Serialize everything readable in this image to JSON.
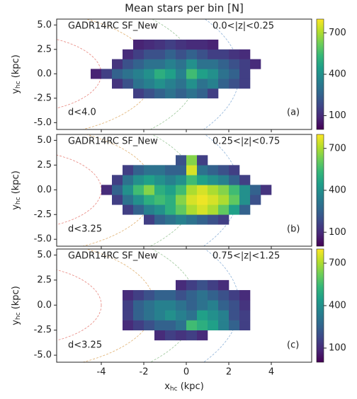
{
  "chart_data": [
    {
      "type": "heatmap",
      "title": "Mean stars per bin [N]",
      "ylabel": [
        "y",
        "hc",
        " (kpc)"
      ],
      "annotations": [
        "GADR14RC SF_New",
        "0.0<|z|<0.25",
        "d<4.0",
        "(a)"
      ],
      "cmap": "viridis",
      "xlim": [
        -6.1,
        5.9
      ],
      "ylim": [
        -5.7,
        5.6
      ],
      "xticks": [
        -4,
        -2,
        0,
        2,
        4
      ],
      "yticks": [
        {
          "value": 5,
          "label": "5.0"
        },
        2.5,
        {
          "value": 0,
          "label": "0.0"
        },
        -2.5,
        {
          "value": -5,
          "label": "-5.0"
        }
      ],
      "clim": [
        0,
        800
      ],
      "cticks": [
        100,
        400,
        700
      ],
      "xbins": [
        -4.5,
        -4,
        -3.5,
        -3,
        -2.5,
        -2,
        -1.5,
        -1,
        -0.5,
        0,
        0.5,
        1,
        1.5,
        2,
        2.5,
        3,
        3.5,
        4
      ],
      "ybins": [
        -3.5,
        -2.5,
        -1.5,
        -0.5,
        0.5,
        1.5,
        2.5,
        3.5
      ],
      "values": [
        [
          null,
          null,
          null,
          null,
          null,
          null,
          null,
          null,
          null,
          null,
          null,
          null,
          null,
          null,
          null,
          null,
          null
        ],
        [
          null,
          null,
          null,
          null,
          150,
          200,
          250,
          300,
          250,
          300,
          250,
          150,
          null,
          null,
          null,
          null,
          null
        ],
        [
          null,
          null,
          120,
          200,
          300,
          350,
          400,
          350,
          300,
          400,
          300,
          350,
          250,
          200,
          150,
          null,
          null
        ],
        [
          80,
          150,
          250,
          300,
          350,
          400,
          500,
          450,
          350,
          550,
          450,
          400,
          300,
          250,
          150,
          null,
          null
        ],
        [
          null,
          null,
          120,
          200,
          250,
          300,
          300,
          350,
          300,
          400,
          300,
          300,
          250,
          200,
          150,
          100,
          null
        ],
        [
          null,
          null,
          null,
          100,
          150,
          200,
          200,
          250,
          200,
          250,
          200,
          150,
          150,
          120,
          100,
          null,
          null
        ],
        [
          null,
          null,
          null,
          null,
          80,
          100,
          120,
          150,
          120,
          100,
          100,
          80,
          null,
          null,
          null,
          null,
          null
        ]
      ]
    },
    {
      "type": "heatmap",
      "ylabel": [
        "y",
        "hc",
        " (kpc)"
      ],
      "annotations": [
        "GADR14RC SF_New",
        "0.25<|z|<0.75",
        "d<3.25",
        "(b)"
      ],
      "cmap": "viridis",
      "xlim": [
        -6.1,
        5.9
      ],
      "ylim": [
        -5.7,
        5.6
      ],
      "xticks": [
        -4,
        -2,
        0,
        2,
        4
      ],
      "yticks": [
        {
          "value": 5,
          "label": "5.0"
        },
        2.5,
        {
          "value": 0,
          "label": "0.0"
        },
        -2.5,
        {
          "value": -5,
          "label": "-5.0"
        }
      ],
      "clim": [
        0,
        800
      ],
      "cticks": [
        100,
        400,
        700
      ],
      "xbins": [
        -4.5,
        -4,
        -3.5,
        -3,
        -2.5,
        -2,
        -1.5,
        -1,
        -0.5,
        0,
        0.5,
        1,
        1.5,
        2,
        2.5,
        3,
        3.5,
        4
      ],
      "ybins": [
        -3.5,
        -2.5,
        -1.5,
        -0.5,
        0.5,
        1.5,
        2.5,
        3.5
      ],
      "values": [
        [
          null,
          null,
          null,
          null,
          null,
          150,
          250,
          300,
          350,
          300,
          250,
          200,
          150,
          null,
          null,
          null,
          null
        ],
        [
          null,
          null,
          null,
          150,
          250,
          350,
          400,
          500,
          600,
          700,
          750,
          700,
          600,
          450,
          250,
          null,
          null
        ],
        [
          null,
          null,
          150,
          300,
          400,
          500,
          550,
          500,
          650,
          750,
          780,
          750,
          700,
          600,
          400,
          200,
          null
        ],
        [
          null,
          100,
          250,
          400,
          550,
          650,
          500,
          450,
          550,
          700,
          750,
          700,
          650,
          550,
          400,
          250,
          120
        ],
        [
          null,
          null,
          150,
          300,
          400,
          450,
          400,
          350,
          400,
          550,
          450,
          400,
          350,
          250,
          150,
          null,
          null
        ],
        [
          null,
          null,
          null,
          150,
          250,
          300,
          300,
          250,
          250,
          750,
          300,
          250,
          200,
          150,
          null,
          null,
          null
        ],
        [
          null,
          null,
          null,
          null,
          null,
          null,
          null,
          null,
          200,
          650,
          150,
          null,
          null,
          null,
          null,
          null,
          null
        ]
      ]
    },
    {
      "type": "heatmap",
      "ylabel": [
        "y",
        "hc",
        " (kpc)"
      ],
      "xlabel": [
        "x",
        "hc",
        " (kpc)"
      ],
      "annotations": [
        "GADR14RC SF_New",
        "0.75<|z|<1.25",
        "d<3.25",
        "(c)"
      ],
      "cmap": "viridis",
      "xlim": [
        -6.1,
        5.9
      ],
      "ylim": [
        -5.7,
        5.6
      ],
      "xticks": [
        -4,
        -2,
        0,
        2,
        4
      ],
      "yticks": [
        {
          "value": 5,
          "label": "5.0"
        },
        2.5,
        {
          "value": 0,
          "label": "0.0"
        },
        -2.5,
        {
          "value": -5,
          "label": "-5.0"
        }
      ],
      "clim": [
        0,
        800
      ],
      "cticks": [
        100,
        400,
        700
      ],
      "xbins": [
        -4.5,
        -4,
        -3.5,
        -3,
        -2.5,
        -2,
        -1.5,
        -1,
        -0.5,
        0,
        0.5,
        1,
        1.5,
        2,
        2.5,
        3,
        3.5,
        4
      ],
      "ybins": [
        -3.5,
        -2.5,
        -1.5,
        -0.5,
        0.5,
        1.5,
        2.5,
        3.5
      ],
      "values": [
        [
          null,
          null,
          null,
          null,
          null,
          null,
          100,
          150,
          120,
          150,
          100,
          null,
          null,
          null,
          null,
          null,
          null
        ],
        [
          null,
          null,
          null,
          100,
          150,
          200,
          250,
          250,
          300,
          550,
          500,
          450,
          350,
          250,
          150,
          null,
          null
        ],
        [
          null,
          null,
          null,
          150,
          250,
          300,
          350,
          400,
          350,
          300,
          450,
          400,
          350,
          200,
          150,
          null,
          null
        ],
        [
          null,
          null,
          null,
          150,
          250,
          300,
          350,
          350,
          300,
          250,
          300,
          350,
          250,
          200,
          120,
          null,
          null
        ],
        [
          null,
          null,
          null,
          100,
          150,
          200,
          250,
          250,
          200,
          250,
          300,
          250,
          200,
          150,
          100,
          null,
          null
        ],
        [
          null,
          null,
          null,
          null,
          null,
          null,
          null,
          null,
          100,
          150,
          200,
          150,
          100,
          null,
          null,
          null,
          null
        ],
        [
          null,
          null,
          null,
          null,
          null,
          null,
          null,
          null,
          null,
          null,
          null,
          null,
          null,
          null,
          null,
          null,
          null
        ]
      ]
    }
  ]
}
